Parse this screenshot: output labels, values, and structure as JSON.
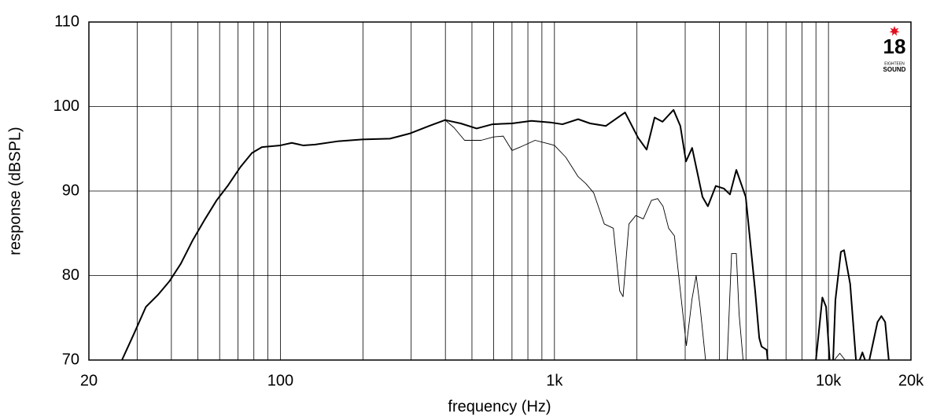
{
  "chart_data": {
    "type": "line",
    "xlabel": "frequency (Hz)",
    "ylabel": "response (dBSPL)",
    "xscale": "log",
    "xlim": [
      20,
      20000
    ],
    "ylim": [
      70,
      110
    ],
    "xticks": [
      20,
      100,
      {
        "value": 1000,
        "label": "1k"
      },
      {
        "value": 10000,
        "label": "10k"
      },
      {
        "value": 20000,
        "label": "20k"
      }
    ],
    "xminor": [
      30,
      40,
      50,
      60,
      70,
      80,
      90,
      200,
      300,
      400,
      500,
      600,
      700,
      800,
      900,
      2000,
      3000,
      4000,
      5000,
      6000,
      7000,
      8000,
      9000
    ],
    "yticks": [
      70,
      80,
      90,
      100,
      110
    ],
    "grid": true,
    "series": [
      {
        "color": "#000000",
        "line_width": 2,
        "x": [
          26.4,
          29.2,
          32.3,
          35.7,
          39.3,
          43.3,
          47.9,
          52.9,
          58.5,
          64.5,
          71.3,
          78.7,
          85.6,
          100,
          110,
          121,
          134,
          163,
          199,
          251,
          296,
          349,
          399,
          455,
          520,
          594,
          700,
          824,
          974,
          1070,
          1220,
          1350,
          1540,
          1810,
          2020,
          2170,
          2320,
          2480,
          2720,
          2880,
          3020,
          3180,
          3470,
          3630,
          3880,
          4150,
          4370,
          4610,
          4990,
          5400,
          5590,
          5700,
          5950,
          6000,
          7500,
          9000,
          9500,
          9800,
          10100,
          10250,
          10400,
          10600,
          11100,
          11400,
          12000,
          12600,
          12800,
          13000,
          13300,
          13600,
          13800,
          14100,
          15100,
          15600,
          16100,
          16600
        ],
        "values": [
          70,
          73.1,
          76.3,
          77.7,
          79.3,
          81.4,
          84.2,
          86.6,
          88.9,
          90.7,
          92.8,
          94.5,
          95.2,
          95.4,
          95.7,
          95.4,
          95.5,
          95.9,
          96.1,
          96.2,
          96.8,
          97.7,
          98.4,
          98.0,
          97.4,
          97.9,
          98.0,
          98.3,
          98.1,
          97.9,
          98.5,
          98.0,
          97.7,
          99.3,
          96.3,
          94.9,
          98.7,
          98.2,
          99.6,
          97.7,
          93.5,
          95.1,
          89.3,
          88.2,
          90.6,
          90.3,
          89.6,
          92.5,
          89.3,
          78.2,
          72.6,
          71.6,
          71.2,
          70,
          null,
          70,
          77.4,
          76.3,
          70,
          null,
          70,
          77.1,
          82.8,
          83,
          79,
          70,
          null,
          70,
          70.9,
          70,
          null,
          70,
          74.5,
          75.2,
          74.5,
          70
        ]
      },
      {
        "color": "#000000",
        "line_width": 0.9,
        "x": [
          399,
          430,
          470,
          540,
          600,
          650,
          700,
          750,
          850,
          950,
          1000,
          1100,
          1220,
          1300,
          1390,
          1520,
          1640,
          1730,
          1780,
          1870,
          1980,
          2110,
          2260,
          2380,
          2490,
          2610,
          2740,
          2880,
          3030,
          3180,
          3290,
          3400,
          3560,
          4000,
          4270,
          4430,
          4610,
          4720,
          4880,
          8000,
          10500,
          11000,
          11500
        ],
        "values": [
          98.4,
          97.5,
          96.0,
          96.0,
          96.4,
          96.5,
          94.8,
          95.2,
          96.0,
          95.6,
          95.4,
          94.0,
          91.7,
          90.9,
          89.8,
          86.1,
          85.6,
          78.2,
          77.5,
          86.1,
          87.1,
          86.7,
          88.9,
          89.1,
          88.2,
          85.6,
          84.7,
          78.2,
          71.7,
          77.3,
          80.0,
          76.3,
          70,
          null,
          70,
          82.6,
          82.6,
          75.4,
          70,
          null,
          70,
          70.8,
          70
        ]
      }
    ]
  },
  "logo": {
    "number": "18",
    "lines": [
      "EIGHTEEN",
      "SOUND"
    ]
  }
}
